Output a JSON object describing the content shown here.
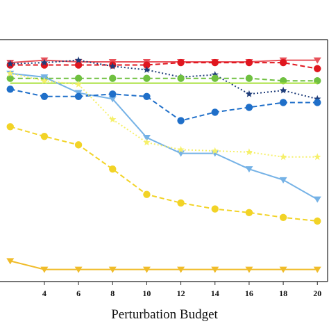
{
  "chart_data": {
    "type": "line",
    "title": "",
    "xlabel": "Perturbation Budget",
    "ylabel": "",
    "x": [
      2,
      4,
      6,
      8,
      10,
      12,
      14,
      16,
      18,
      20
    ],
    "xticks": [
      "4",
      "6",
      "8",
      "10",
      "12",
      "14",
      "16",
      "18",
      "20"
    ],
    "xlim": [
      1.4,
      20.6
    ],
    "ylim": [
      0,
      100
    ],
    "grid": false,
    "legend": "none",
    "series": [
      {
        "color": "#e8515a",
        "dash": "solid",
        "marker": "triangle-down",
        "values": [
          90.5,
          91.5,
          90.8,
          90.8,
          90.8,
          90.8,
          90.8,
          90.8,
          91.5,
          91.5
        ]
      },
      {
        "color": "#e0161e",
        "dash": "dashed",
        "marker": "circle",
        "values": [
          89.5,
          89.5,
          89.5,
          89.5,
          89.5,
          90.5,
          90.5,
          90.5,
          90.5,
          88.0
        ]
      },
      {
        "color": "#1f3d7a",
        "dash": "dotted",
        "marker": "star",
        "values": [
          90.0,
          90.5,
          91.5,
          89.0,
          87.5,
          84.5,
          85.5,
          77.5,
          79.0,
          75.5
        ]
      },
      {
        "color": "#6fc040",
        "dash": "dashed",
        "marker": "circle",
        "values": [
          84.0,
          84.0,
          84.0,
          84.0,
          84.0,
          84.0,
          84.0,
          84.0,
          83.0,
          83.0
        ]
      },
      {
        "color": "#a8e03a",
        "dash": "solid",
        "marker": "none",
        "values": [
          82.0,
          82.0,
          82.0,
          82.0,
          82.0,
          82.0,
          82.0,
          82.0,
          82.0,
          82.0
        ]
      },
      {
        "color": "#75b2e6",
        "dash": "solid",
        "marker": "triangle-down",
        "values": [
          86.0,
          84.5,
          78.0,
          75.5,
          59.5,
          53.0,
          53.0,
          46.5,
          42.0,
          34.0
        ]
      },
      {
        "color": "#1f6fc9",
        "dash": "dashed",
        "marker": "circle",
        "values": [
          79.5,
          76.5,
          76.5,
          77.5,
          76.5,
          66.5,
          70.0,
          72.0,
          74.0,
          74.0
        ]
      },
      {
        "color": "#f6f06a",
        "dash": "dotted",
        "marker": "star",
        "values": [
          86.0,
          83.0,
          81.5,
          67.0,
          57.5,
          54.5,
          54.0,
          53.5,
          51.5,
          51.5
        ]
      },
      {
        "color": "#f2d326",
        "dash": "dashed",
        "marker": "circle",
        "values": [
          64.0,
          60.0,
          56.5,
          46.5,
          36.0,
          32.5,
          30.0,
          28.5,
          26.5,
          25.0
        ]
      },
      {
        "color": "#f0bc2a",
        "dash": "solid",
        "marker": "triangle-down",
        "values": [
          8.5,
          5.0,
          5.0,
          5.0,
          5.0,
          5.0,
          5.0,
          5.0,
          5.0,
          5.0
        ]
      }
    ]
  }
}
